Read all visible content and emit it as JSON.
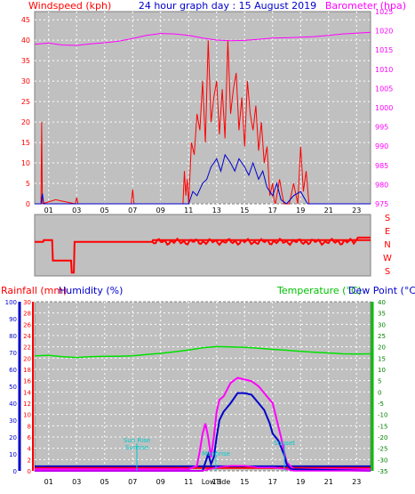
{
  "top_panel": {
    "left_title": "Windspeed (kph)",
    "center_title": "24 hour graph day : 15 August 2019",
    "right_title": "Barometer (hpa)"
  },
  "direction_labels": [
    "S",
    "E",
    "N",
    "W",
    "S"
  ],
  "bottom_panel": {
    "rainfall_label": "Rainfall (mm)",
    "humidity_label": "Humidity (%)",
    "temperature_label": "Temperature (°C)",
    "dewpoint_label": "Dew Point (°C)"
  },
  "annotations": {
    "sunrise": "Sun Rise",
    "sunrise_sub": "Sunrise",
    "sunset": "Sunset",
    "moonrise": "Moonrise",
    "lowtide": "LowTide"
  },
  "colors": {
    "plot_bg": "#c0c0c0",
    "wind": "#ff0000",
    "gust": "#ff0000",
    "avg_wind": "#0000cc",
    "barometer": "#ff00ff",
    "direction": "#ff0000",
    "temperature": "#00e000",
    "dewpoint": "#0000cc",
    "humidity": "#ff00ff",
    "rain_axis": "#ff0000",
    "humidity_axis": "#0000cc",
    "temp_axis": "#00c000",
    "annotation": "#00c8c8"
  },
  "chart_data": [
    {
      "type": "line",
      "title": "24 hour graph day : 15 August 2019",
      "xlabel": "",
      "x_ticks": [
        "01",
        "03",
        "05",
        "07",
        "09",
        "11",
        "13",
        "15",
        "17",
        "19",
        "21",
        "23"
      ],
      "y_left": {
        "label": "Windspeed (kph)",
        "ticks": [
          0,
          5,
          10,
          15,
          20,
          25,
          30,
          35,
          40,
          45
        ],
        "range": [
          0,
          47
        ]
      },
      "y_right": {
        "label": "Barometer (hpa)",
        "ticks": [
          975,
          980,
          985,
          990,
          995,
          1000,
          1005,
          1010,
          1015,
          1020,
          1025
        ],
        "range": [
          975,
          1025
        ]
      },
      "grid": true,
      "series": [
        {
          "axis": "left",
          "x": [
            0,
            0.45,
            0.5,
            0.55,
            1.5,
            2.9,
            3,
            3.1,
            6.9,
            7,
            7.1,
            10.6,
            10.7,
            10.8,
            10.9,
            11,
            11.2,
            11.4,
            11.6,
            11.8,
            12,
            12.2,
            12.4,
            12.6,
            12.8,
            13,
            13.2,
            13.4,
            13.6,
            13.8,
            14,
            14.2,
            14.4,
            14.6,
            14.8,
            15,
            15.2,
            15.4,
            15.6,
            15.8,
            16,
            16.2,
            16.4,
            16.6,
            16.8,
            17,
            17.1,
            17.2,
            17.5,
            17.8,
            18.2,
            18.5,
            18.8,
            19,
            19.2,
            19.4,
            19.6,
            19.8,
            24
          ],
          "values": [
            0,
            0,
            20,
            0,
            1,
            0,
            1.5,
            0,
            0,
            3.5,
            0,
            0,
            8,
            2,
            6,
            0,
            15,
            12,
            22,
            18,
            30,
            15,
            40,
            20,
            26,
            30,
            17,
            28,
            16,
            40,
            22,
            28,
            32,
            18,
            26,
            14,
            30,
            22,
            18,
            24,
            13,
            20,
            10,
            14,
            2,
            5,
            1,
            0,
            6,
            0,
            0,
            5,
            0,
            14,
            3,
            8,
            0,
            0,
            0
          ]
        },
        {
          "axis": "left",
          "x": [
            0,
            0.45,
            0.55,
            0.65,
            11,
            11.3,
            11.6,
            12,
            12.3,
            12.6,
            13,
            13.3,
            13.6,
            14,
            14.3,
            14.6,
            15,
            15.3,
            15.6,
            16,
            16.3,
            16.6,
            17,
            17.3,
            17.6,
            18,
            18.5,
            19,
            19.5,
            24
          ],
          "values": [
            0,
            0,
            2.5,
            0,
            0,
            3,
            2,
            5,
            6,
            9,
            11,
            8,
            12,
            10,
            8,
            11,
            9,
            7,
            10,
            6,
            8,
            4,
            2,
            5,
            1,
            0,
            2,
            3,
            0,
            0
          ]
        },
        {
          "axis": "right",
          "x": [
            0,
            1,
            2,
            3,
            4,
            5,
            6,
            7,
            8,
            9,
            10,
            11,
            12,
            13,
            14,
            15,
            16,
            17,
            18,
            19,
            20,
            21,
            22,
            23,
            24
          ],
          "values": [
            1016.5,
            1016.8,
            1016.3,
            1016.2,
            1016.6,
            1016.9,
            1017.3,
            1018,
            1018.8,
            1019.3,
            1019.2,
            1018.8,
            1018.1,
            1017.6,
            1017.4,
            1017.5,
            1017.8,
            1018.1,
            1018.2,
            1018.3,
            1018.5,
            1018.8,
            1019.2,
            1019.4,
            1019.6
          ]
        }
      ]
    },
    {
      "type": "line",
      "title": "",
      "y_ticks": [
        "S",
        "E",
        "N",
        "W",
        "S"
      ],
      "y_range": [
        0,
        360
      ],
      "series": [
        {
          "x": [
            0,
            0.6,
            0.65,
            1.2,
            1.25,
            1.3,
            1.35,
            2.6,
            2.65,
            2.8,
            2.85,
            7.2,
            7.25,
            8.4,
            8.45,
            24
          ],
          "values": [
            200,
            200,
            210,
            210,
            210,
            90,
            90,
            90,
            20,
            20,
            200,
            200,
            200,
            200,
            210,
            210
          ]
        }
      ]
    },
    {
      "type": "line",
      "title": "",
      "x_ticks": [
        "01",
        "03",
        "05",
        "07",
        "09",
        "11",
        "13",
        "15",
        "17",
        "19",
        "21",
        "23"
      ],
      "y_rain": {
        "label": "Rainfall (mm)",
        "ticks": [
          0,
          2,
          4,
          6,
          8,
          10,
          12,
          14,
          16,
          18,
          20,
          22,
          24,
          26,
          28,
          30
        ],
        "range": [
          0,
          30
        ]
      },
      "y_humidity": {
        "label": "Humidity (%)",
        "ticks": [
          0,
          10,
          20,
          30,
          40,
          50,
          60,
          70,
          80,
          90,
          100
        ],
        "range": [
          0,
          100
        ]
      },
      "y_temp": {
        "label": "Temperature (°C)",
        "ticks": [
          40,
          35,
          30,
          25,
          20,
          15,
          10,
          5,
          0,
          -5,
          -10,
          -15,
          -20,
          -25,
          -30,
          -35
        ],
        "range": [
          -35,
          40
        ]
      },
      "grid": true,
      "series": [
        {
          "axis": "temp",
          "x": [
            0,
            1,
            2,
            3,
            4,
            5,
            6,
            7,
            8,
            9,
            10,
            11,
            12,
            13,
            14,
            15,
            16,
            17,
            18,
            19,
            20,
            21,
            22,
            23,
            24
          ],
          "values": [
            16,
            16.2,
            15.6,
            15.3,
            15.6,
            15.8,
            15.8,
            16,
            16.6,
            17.1,
            17.8,
            18.6,
            19.6,
            20.1,
            20,
            19.8,
            19.4,
            18.9,
            18.5,
            18,
            17.6,
            17.3,
            16.9,
            16.8,
            16.9
          ]
        },
        {
          "axis": "rain",
          "x": [
            0,
            24
          ],
          "values": [
            0.8,
            0.8
          ]
        },
        {
          "axis": "rain",
          "x": [
            0,
            24
          ],
          "values": [
            0.5,
            0.5
          ]
        },
        {
          "axis": "humidity",
          "x": [
            0,
            11,
            11.6,
            11.8,
            12,
            12.2,
            12.4,
            12.6,
            12.8,
            13,
            13.2,
            13.5,
            14,
            14.5,
            15,
            15.5,
            16,
            16.4,
            16.8,
            17,
            17.3,
            17.6,
            18,
            18.5,
            24
          ],
          "values": [
            1,
            1,
            3,
            12,
            22,
            28,
            20,
            8,
            20,
            35,
            42,
            44,
            52,
            55,
            54,
            53,
            50,
            46,
            42,
            40,
            30,
            20,
            5,
            1,
            1
          ]
        },
        {
          "axis": "humidity",
          "x": [
            0,
            12,
            12.4,
            12.6,
            12.8,
            13,
            13.2,
            13.5,
            14,
            14.5,
            15,
            15.5,
            16,
            16.4,
            16.8,
            17,
            17.4,
            17.8,
            18,
            18.3,
            24
          ],
          "values": [
            0,
            0,
            10,
            4,
            8,
            20,
            30,
            35,
            40,
            46,
            46,
            45,
            40,
            36,
            28,
            22,
            18,
            10,
            4,
            1,
            0
          ]
        },
        {
          "axis": "humidity",
          "x": [
            0,
            12,
            12.5,
            13,
            14,
            15,
            16,
            17,
            18,
            18.5,
            24
          ],
          "values": [
            0,
            0,
            1,
            2,
            3,
            3,
            2,
            2,
            1,
            0,
            0
          ]
        }
      ]
    }
  ]
}
